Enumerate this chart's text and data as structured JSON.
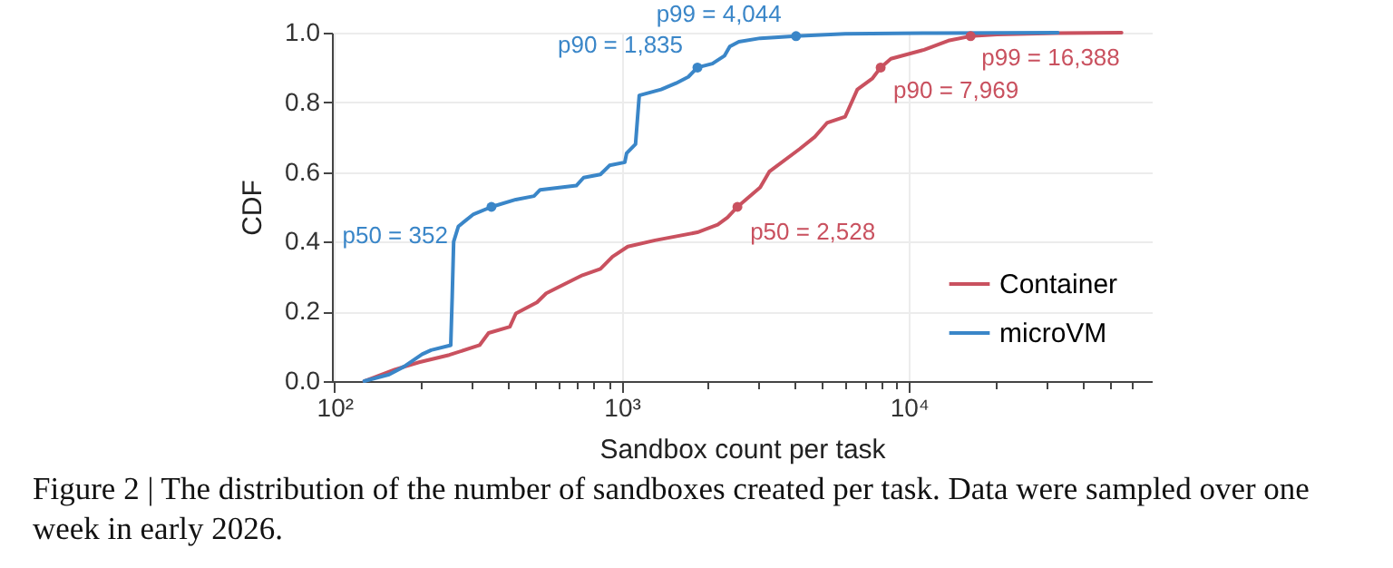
{
  "chart_data": {
    "type": "line",
    "xlabel": "Sandbox count per task",
    "ylabel": "CDF",
    "log": "x",
    "xlim": [
      98,
      70000
    ],
    "ylim": [
      0,
      1.0
    ],
    "xticks": [
      {
        "value": 100,
        "label": "10²"
      },
      {
        "value": 200,
        "label": null
      },
      {
        "value": 300,
        "label": null
      },
      {
        "value": 400,
        "label": null
      },
      {
        "value": 500,
        "label": null
      },
      {
        "value": 600,
        "label": null
      },
      {
        "value": 700,
        "label": null
      },
      {
        "value": 800,
        "label": null
      },
      {
        "value": 900,
        "label": null
      },
      {
        "value": 1000,
        "label": "10³"
      },
      {
        "value": 2000,
        "label": null
      },
      {
        "value": 3000,
        "label": null
      },
      {
        "value": 4000,
        "label": null
      },
      {
        "value": 5000,
        "label": null
      },
      {
        "value": 6000,
        "label": null
      },
      {
        "value": 7000,
        "label": null
      },
      {
        "value": 8000,
        "label": null
      },
      {
        "value": 9000,
        "label": null
      },
      {
        "value": 10000,
        "label": "10⁴"
      },
      {
        "value": 20000,
        "label": null
      },
      {
        "value": 30000,
        "label": null
      },
      {
        "value": 40000,
        "label": null
      },
      {
        "value": 50000,
        "label": null
      },
      {
        "value": 60000,
        "label": null
      }
    ],
    "yticks": [
      {
        "value": 0,
        "label": "0.0"
      },
      0.2,
      0.4,
      0.6,
      0.8,
      {
        "value": 1,
        "label": "1.0"
      }
    ],
    "grid": true,
    "legend": "bottom right",
    "series": [
      {
        "name": "Container",
        "color": "#c9515f",
        "x": [
          127,
          162,
          197,
          251,
          320,
          344,
          408,
          428,
          507,
          546,
          631,
          730,
          843,
          929,
          1050,
          1306,
          1834,
          2158,
          2336,
          2528,
          3034,
          3264,
          4160,
          4699,
          5183,
          5998,
          6610,
          7465,
          7969,
          8650,
          11290,
          13710,
          16388,
          20260,
          32970,
          54950
        ],
        "values": [
          0,
          0.033,
          0.054,
          0.075,
          0.103,
          0.138,
          0.156,
          0.194,
          0.226,
          0.252,
          0.278,
          0.304,
          0.322,
          0.357,
          0.386,
          0.404,
          0.427,
          0.449,
          0.47,
          0.5,
          0.556,
          0.601,
          0.666,
          0.701,
          0.741,
          0.759,
          0.837,
          0.869,
          0.9,
          0.925,
          0.951,
          0.977,
          0.99,
          0.995,
          0.999,
          1.0
        ]
      },
      {
        "name": "microVM",
        "color": "#3a86c8",
        "x": [
          127,
          155,
          175,
          202,
          217,
          254,
          257,
          260,
          270,
          305,
          352,
          428,
          495,
          520,
          695,
          737,
          843,
          907,
          1025,
          1040,
          1117,
          1151,
          1371,
          1546,
          1705,
          1835,
          2069,
          2281,
          2378,
          2557,
          3034,
          3510,
          4044,
          5995,
          12450,
          32970
        ],
        "values": [
          0,
          0.019,
          0.042,
          0.077,
          0.089,
          0.103,
          0.243,
          0.4,
          0.444,
          0.479,
          0.5,
          0.521,
          0.531,
          0.549,
          0.561,
          0.584,
          0.593,
          0.619,
          0.628,
          0.654,
          0.68,
          0.82,
          0.837,
          0.855,
          0.873,
          0.9,
          0.911,
          0.934,
          0.96,
          0.974,
          0.984,
          0.987,
          0.99,
          0.997,
          0.999,
          1.0
        ]
      },
      {
        "type": "scatter",
        "marker": "circle",
        "color": "#c9515f",
        "x": [
          2528,
          7969,
          16388
        ],
        "values": [
          0.5,
          0.9,
          0.99
        ]
      },
      {
        "type": "scatter",
        "marker": "circle",
        "color": "#3a86c8",
        "x": [
          352,
          1835,
          4044
        ],
        "values": [
          0.5,
          0.9,
          0.99
        ]
      }
    ],
    "annotations": [
      {
        "text": "p50 = 352",
        "x": 352,
        "y": 0.5
      },
      {
        "text": "p90 = 1,835",
        "x": 1835,
        "y": 0.9
      },
      {
        "text": "p99 = 4,044",
        "x": 4044,
        "y": 0.99
      },
      {
        "text": "p50 = 2,528",
        "x": 2528,
        "y": 0.5
      },
      {
        "text": "p90 = 7,969",
        "x": 7969,
        "y": 0.9
      },
      {
        "text": "p99 = 16,388",
        "x": 16388,
        "y": 0.99
      },
      "Figure 2 | The distribution of the number of sandboxes created per task. Data were sampled over one week in early 2026."
    ]
  }
}
